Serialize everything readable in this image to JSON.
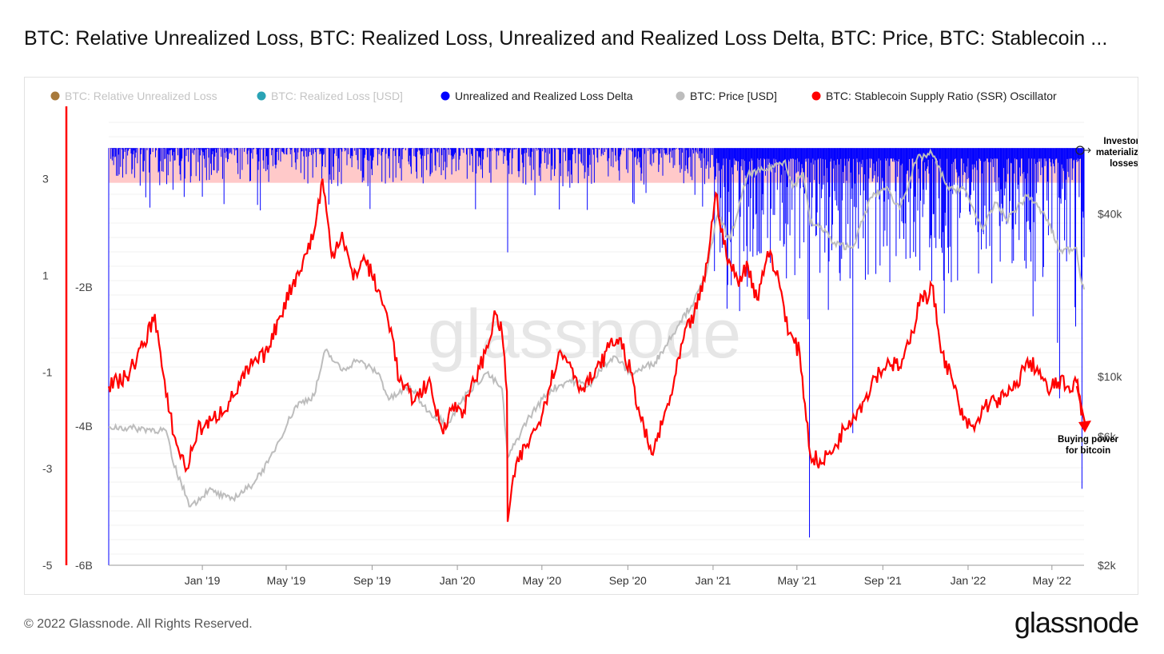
{
  "title": "BTC: Relative Unrealized Loss, BTC: Realized Loss, Unrealized and Realized Loss Delta, BTC: Price, BTC: Stablecoin ...",
  "footer": "© 2022 Glassnode. All Rights Reserved.",
  "brand": "glassnode",
  "watermark": "glassnode",
  "colors": {
    "relative_unrealized_loss": "#a87a3c",
    "realized_loss": "#2aa3b5",
    "loss_delta": "#0000ff",
    "price": "#bdbdbd",
    "ssr": "#ff0000",
    "band": "#ffc9c9"
  },
  "legend": [
    {
      "label": "BTC: Relative Unrealized Loss",
      "color": "#a87a3c",
      "dimmed": true
    },
    {
      "label": "BTC: Realized Loss [USD]",
      "color": "#2aa3b5",
      "dimmed": true
    },
    {
      "label": "Unrealized and Realized Loss Delta",
      "color": "#0000ff",
      "dimmed": false
    },
    {
      "label": "BTC: Price [USD]",
      "color": "#bdbdbd",
      "dimmed": false
    },
    {
      "label": "BTC: Stablecoin Supply Ratio (SSR) Oscillator",
      "color": "#ff0000",
      "dimmed": false
    }
  ],
  "annotations": {
    "top": [
      "Investors",
      "materializing",
      "losses"
    ],
    "bottom": [
      "Buying power",
      "for bitcoin"
    ]
  },
  "chart_data": {
    "type": "line",
    "x_tick_labels": [
      "Jan '19",
      "May '19",
      "Sep '19",
      "Jan '20",
      "May '20",
      "Sep '20",
      "Jan '21",
      "May '21",
      "Sep '21",
      "Jan '22",
      "May '22"
    ],
    "axes": {
      "ssr_axis": {
        "tick_labels": [
          "3",
          "1",
          "-1",
          "-3",
          "-5"
        ],
        "range": [
          -5,
          4.5
        ]
      },
      "loss_axis": {
        "tick_labels": [
          "-2B",
          "-4B",
          "-6B"
        ],
        "range": [
          -6,
          0.6
        ],
        "unit": "B USD"
      },
      "price_axis": {
        "tick_labels": [
          "$40k",
          "$10k",
          "$6k",
          "$2k"
        ],
        "scale": "log",
        "range": [
          2000,
          100000
        ]
      }
    },
    "series": [
      {
        "name": "BTC: Stablecoin Supply Ratio (SSR) Oscillator",
        "axis": "ssr_axis",
        "points": [
          [
            "2018-08-20",
            -1.3
          ],
          [
            "2018-09-15",
            -1.1
          ],
          [
            "2018-10-10",
            -0.4
          ],
          [
            "2018-10-25",
            0.2
          ],
          [
            "2018-11-10",
            -1.5
          ],
          [
            "2018-11-25",
            -2.5
          ],
          [
            "2018-12-10",
            -3.0
          ],
          [
            "2018-12-25",
            -2.2
          ],
          [
            "2019-01-15",
            -2.0
          ],
          [
            "2019-02-10",
            -1.6
          ],
          [
            "2019-03-10",
            -0.9
          ],
          [
            "2019-04-05",
            -0.6
          ],
          [
            "2019-04-20",
            0.1
          ],
          [
            "2019-05-10",
            0.8
          ],
          [
            "2019-05-25",
            1.3
          ],
          [
            "2019-06-10",
            1.9
          ],
          [
            "2019-06-22",
            3.0
          ],
          [
            "2019-07-05",
            1.4
          ],
          [
            "2019-07-20",
            1.9
          ],
          [
            "2019-08-05",
            0.9
          ],
          [
            "2019-08-20",
            1.4
          ],
          [
            "2019-09-10",
            0.7
          ],
          [
            "2019-09-28",
            -0.1
          ],
          [
            "2019-10-10",
            -1.2
          ],
          [
            "2019-11-01",
            -1.6
          ],
          [
            "2019-11-20",
            -1.2
          ],
          [
            "2019-12-10",
            -2.2
          ],
          [
            "2019-12-25",
            -1.7
          ],
          [
            "2020-01-10",
            -1.8
          ],
          [
            "2020-01-25",
            -1.2
          ],
          [
            "2020-02-10",
            -0.6
          ],
          [
            "2020-02-25",
            0.2
          ],
          [
            "2020-03-05",
            -0.2
          ],
          [
            "2020-03-12",
            -1.4
          ],
          [
            "2020-03-13",
            -4.1
          ],
          [
            "2020-03-25",
            -2.9
          ],
          [
            "2020-04-10",
            -2.5
          ],
          [
            "2020-04-25",
            -2.1
          ],
          [
            "2020-05-10",
            -1.4
          ],
          [
            "2020-05-25",
            -0.6
          ],
          [
            "2020-06-10",
            -0.8
          ],
          [
            "2020-06-25",
            -1.3
          ],
          [
            "2020-07-15",
            -1.1
          ],
          [
            "2020-08-05",
            -0.5
          ],
          [
            "2020-08-20",
            -0.3
          ],
          [
            "2020-09-05",
            -1.0
          ],
          [
            "2020-09-20",
            -2.0
          ],
          [
            "2020-10-05",
            -2.7
          ],
          [
            "2020-10-20",
            -2.1
          ],
          [
            "2020-11-05",
            -1.3
          ],
          [
            "2020-11-20",
            -0.3
          ],
          [
            "2020-12-05",
            0.2
          ],
          [
            "2020-12-20",
            0.9
          ],
          [
            "2021-01-05",
            2.7
          ],
          [
            "2021-01-20",
            1.4
          ],
          [
            "2021-02-05",
            0.9
          ],
          [
            "2021-02-20",
            1.2
          ],
          [
            "2021-03-05",
            0.5
          ],
          [
            "2021-03-20",
            1.5
          ],
          [
            "2021-04-05",
            0.9
          ],
          [
            "2021-04-20",
            -0.2
          ],
          [
            "2021-05-05",
            -0.6
          ],
          [
            "2021-05-20",
            -2.7
          ],
          [
            "2021-06-05",
            -2.9
          ],
          [
            "2021-06-25",
            -2.5
          ],
          [
            "2021-07-15",
            -2.0
          ],
          [
            "2021-08-05",
            -1.6
          ],
          [
            "2021-08-20",
            -1.1
          ],
          [
            "2021-09-10",
            -0.8
          ],
          [
            "2021-09-25",
            -0.9
          ],
          [
            "2021-10-10",
            -0.4
          ],
          [
            "2021-10-25",
            0.6
          ],
          [
            "2021-11-05",
            0.5
          ],
          [
            "2021-11-10",
            0.8
          ],
          [
            "2021-11-25",
            -0.6
          ],
          [
            "2021-12-10",
            -1.2
          ],
          [
            "2021-12-25",
            -2.0
          ],
          [
            "2022-01-10",
            -2.2
          ],
          [
            "2022-01-25",
            -1.7
          ],
          [
            "2022-02-10",
            -1.6
          ],
          [
            "2022-02-25",
            -1.5
          ],
          [
            "2022-03-10",
            -1.3
          ],
          [
            "2022-03-25",
            -0.8
          ],
          [
            "2022-04-10",
            -0.9
          ],
          [
            "2022-04-25",
            -1.4
          ],
          [
            "2022-05-10",
            -1.2
          ],
          [
            "2022-05-25",
            -1.3
          ],
          [
            "2022-06-05",
            -1.2
          ],
          [
            "2022-06-10",
            -1.5
          ],
          [
            "2022-06-12",
            -1.9
          ]
        ]
      },
      {
        "name": "BTC: Price [USD]",
        "axis": "price_axis",
        "points": [
          [
            "2018-08-20",
            6500
          ],
          [
            "2018-10-10",
            6400
          ],
          [
            "2018-11-10",
            6300
          ],
          [
            "2018-11-20",
            4800
          ],
          [
            "2018-12-15",
            3300
          ],
          [
            "2019-01-10",
            3800
          ],
          [
            "2019-02-10",
            3500
          ],
          [
            "2019-03-10",
            3900
          ],
          [
            "2019-04-05",
            4800
          ],
          [
            "2019-05-15",
            7800
          ],
          [
            "2019-06-10",
            8500
          ],
          [
            "2019-06-26",
            12500
          ],
          [
            "2019-07-20",
            10500
          ],
          [
            "2019-08-10",
            11500
          ],
          [
            "2019-09-10",
            10300
          ],
          [
            "2019-09-25",
            8200
          ],
          [
            "2019-10-25",
            9200
          ],
          [
            "2019-11-20",
            7400
          ],
          [
            "2019-12-18",
            6700
          ],
          [
            "2020-01-15",
            8700
          ],
          [
            "2020-02-12",
            10300
          ],
          [
            "2020-03-05",
            9000
          ],
          [
            "2020-03-13",
            5000
          ],
          [
            "2020-04-10",
            6900
          ],
          [
            "2020-05-10",
            8800
          ],
          [
            "2020-06-10",
            9700
          ],
          [
            "2020-07-10",
            9200
          ],
          [
            "2020-07-27",
            11000
          ],
          [
            "2020-08-15",
            11800
          ],
          [
            "2020-09-05",
            10200
          ],
          [
            "2020-10-10",
            11300
          ],
          [
            "2020-10-25",
            13000
          ],
          [
            "2020-11-15",
            16000
          ],
          [
            "2020-12-05",
            19000
          ],
          [
            "2020-12-20",
            23000
          ],
          [
            "2021-01-08",
            40000
          ],
          [
            "2021-01-25",
            32000
          ],
          [
            "2021-02-20",
            56000
          ],
          [
            "2021-03-15",
            58000
          ],
          [
            "2021-04-14",
            63000
          ],
          [
            "2021-04-25",
            50000
          ],
          [
            "2021-05-10",
            57000
          ],
          [
            "2021-05-20",
            37000
          ],
          [
            "2021-06-10",
            35000
          ],
          [
            "2021-06-22",
            31000
          ],
          [
            "2021-07-20",
            30000
          ],
          [
            "2021-08-15",
            46000
          ],
          [
            "2021-09-05",
            50000
          ],
          [
            "2021-09-25",
            42000
          ],
          [
            "2021-10-20",
            64000
          ],
          [
            "2021-11-10",
            67000
          ],
          [
            "2021-12-05",
            49000
          ],
          [
            "2021-12-25",
            50000
          ],
          [
            "2022-01-22",
            35000
          ],
          [
            "2022-02-10",
            44000
          ],
          [
            "2022-02-25",
            38000
          ],
          [
            "2022-03-28",
            47000
          ],
          [
            "2022-04-25",
            38000
          ],
          [
            "2022-05-12",
            29000
          ],
          [
            "2022-06-05",
            30000
          ],
          [
            "2022-06-13",
            22000
          ],
          [
            "2022-06-16",
            21000
          ]
        ]
      },
      {
        "name": "Unrealized and Realized Loss Delta",
        "axis": "loss_axis",
        "type": "bar",
        "note_points": [
          [
            "2018-08-20",
            -6.0
          ],
          [
            "2018-11-20",
            -0.6
          ],
          [
            "2019-01-01",
            -0.7
          ],
          [
            "2020-03-13",
            -1.5
          ],
          [
            "2021-01-11",
            -1.5
          ],
          [
            "2021-05-19",
            -5.6
          ],
          [
            "2021-06-21",
            -1.1
          ],
          [
            "2021-07-20",
            -4.1
          ],
          [
            "2021-12-04",
            -1.8
          ],
          [
            "2022-01-22",
            -1.2
          ],
          [
            "2022-05-09",
            -2.8
          ],
          [
            "2022-05-12",
            -3.6
          ],
          [
            "2022-06-13",
            -4.9
          ]
        ]
      }
    ],
    "band": {
      "axis": "loss_axis",
      "from": 0.0,
      "to": -0.5
    }
  }
}
